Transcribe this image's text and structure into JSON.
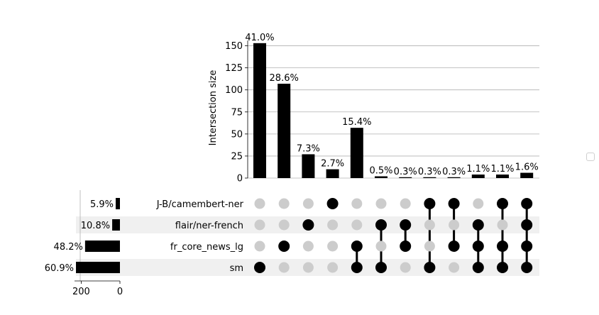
{
  "chart_data": {
    "type": "upset",
    "ylabel": "Intersection size",
    "yticks": [
      0,
      25,
      50,
      75,
      100,
      125,
      150
    ],
    "ylim": [
      0,
      160
    ],
    "grid": true,
    "sets": [
      "J-B/camembert-ner",
      "flair/ner-french",
      "fr_core_news_lg",
      "sm"
    ],
    "set_size_percent_labels": [
      "5.9%",
      "10.8%",
      "48.2%",
      "60.9%"
    ],
    "set_sizes": [
      22,
      40,
      180,
      227
    ],
    "set_size_ticks": [
      200,
      0
    ],
    "intersections": [
      {
        "members": [
          "sm"
        ],
        "size": 153,
        "label": "41.0%"
      },
      {
        "members": [
          "fr_core_news_lg"
        ],
        "size": 107,
        "label": "28.6%"
      },
      {
        "members": [
          "flair/ner-french"
        ],
        "size": 27,
        "label": "7.3%"
      },
      {
        "members": [
          "J-B/camembert-ner"
        ],
        "size": 10,
        "label": "2.7%"
      },
      {
        "members": [
          "fr_core_news_lg",
          "sm"
        ],
        "size": 57,
        "label": "15.4%"
      },
      {
        "members": [
          "flair/ner-french",
          "sm"
        ],
        "size": 2,
        "label": "0.5%"
      },
      {
        "members": [
          "flair/ner-french",
          "fr_core_news_lg"
        ],
        "size": 1,
        "label": "0.3%"
      },
      {
        "members": [
          "J-B/camembert-ner",
          "sm"
        ],
        "size": 1,
        "label": "0.3%"
      },
      {
        "members": [
          "J-B/camembert-ner",
          "fr_core_news_lg"
        ],
        "size": 1,
        "label": "0.3%"
      },
      {
        "members": [
          "flair/ner-french",
          "fr_core_news_lg",
          "sm"
        ],
        "size": 4,
        "label": "1.1%"
      },
      {
        "members": [
          "J-B/camembert-ner",
          "fr_core_news_lg",
          "sm"
        ],
        "size": 4,
        "label": "1.1%"
      },
      {
        "members": [
          "J-B/camembert-ner",
          "flair/ner-french",
          "fr_core_news_lg",
          "sm"
        ],
        "size": 6,
        "label": "1.6%"
      }
    ],
    "colors": {
      "active": "#000000",
      "inactive": "#cccccc",
      "grid": "#b0b0b0",
      "stripe": "#f0f0f0"
    }
  }
}
